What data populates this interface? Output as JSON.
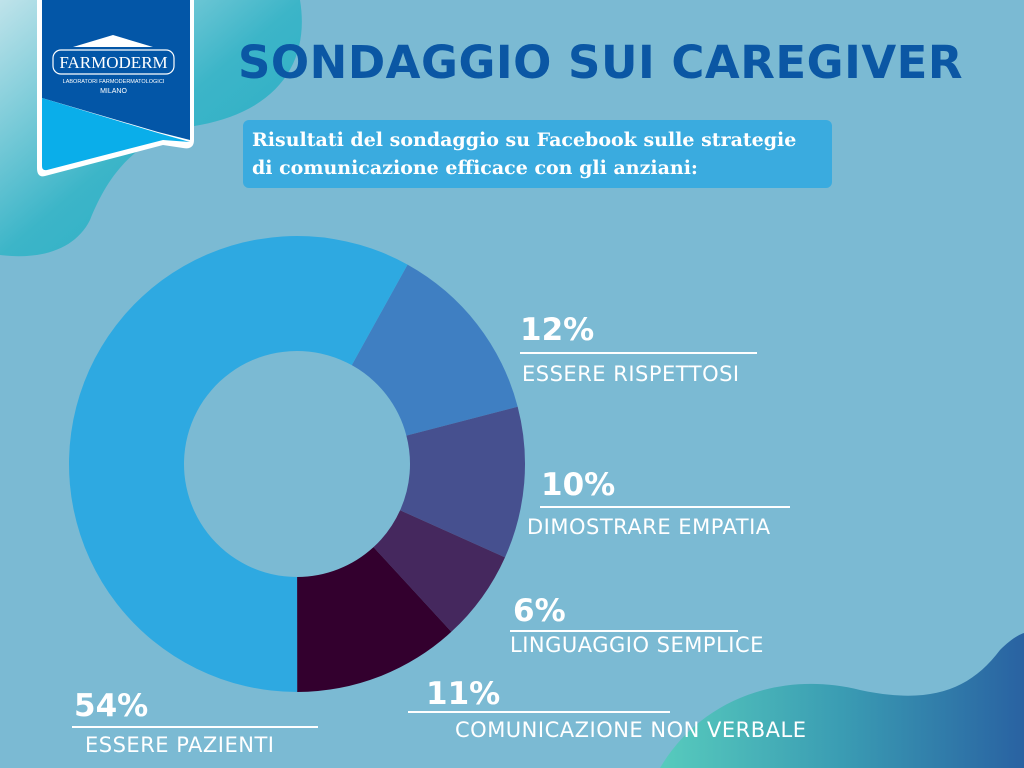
{
  "logo": {
    "brand": "FARMODERM",
    "line1": "LABORATORI FARMODERMATOLOGICI",
    "line2": "MILANO"
  },
  "header": {
    "title": "SONDAGGIO SUI CAREGIVER",
    "subtitle": "Risultati del sondaggio su Facebook sulle strategie di comunicazione efficace con gli anziani:"
  },
  "colors": {
    "background": "#7bbad3",
    "title": "#0b57a4",
    "subtitle_box": "#3aabdf"
  },
  "chart_data": {
    "type": "pie",
    "variant": "donut",
    "slices": [
      {
        "label": "ESSERE RISPETTOSI",
        "value": 12,
        "display": "12%",
        "color": "#3f7fc2"
      },
      {
        "label": "DIMOSTRARE EMPATIA",
        "value": 10,
        "display": "10%",
        "color": "#46508f"
      },
      {
        "label": "LINGUAGGIO SEMPLICE",
        "value": 6,
        "display": "6%",
        "color": "#45285e"
      },
      {
        "label": "COMUNICAZIONE NON VERBALE",
        "value": 11,
        "display": "11%",
        "color": "#33002e"
      },
      {
        "label": "ESSERE PAZIENTI",
        "value": 54,
        "display": "54%",
        "color": "#2ea9e1"
      }
    ]
  }
}
